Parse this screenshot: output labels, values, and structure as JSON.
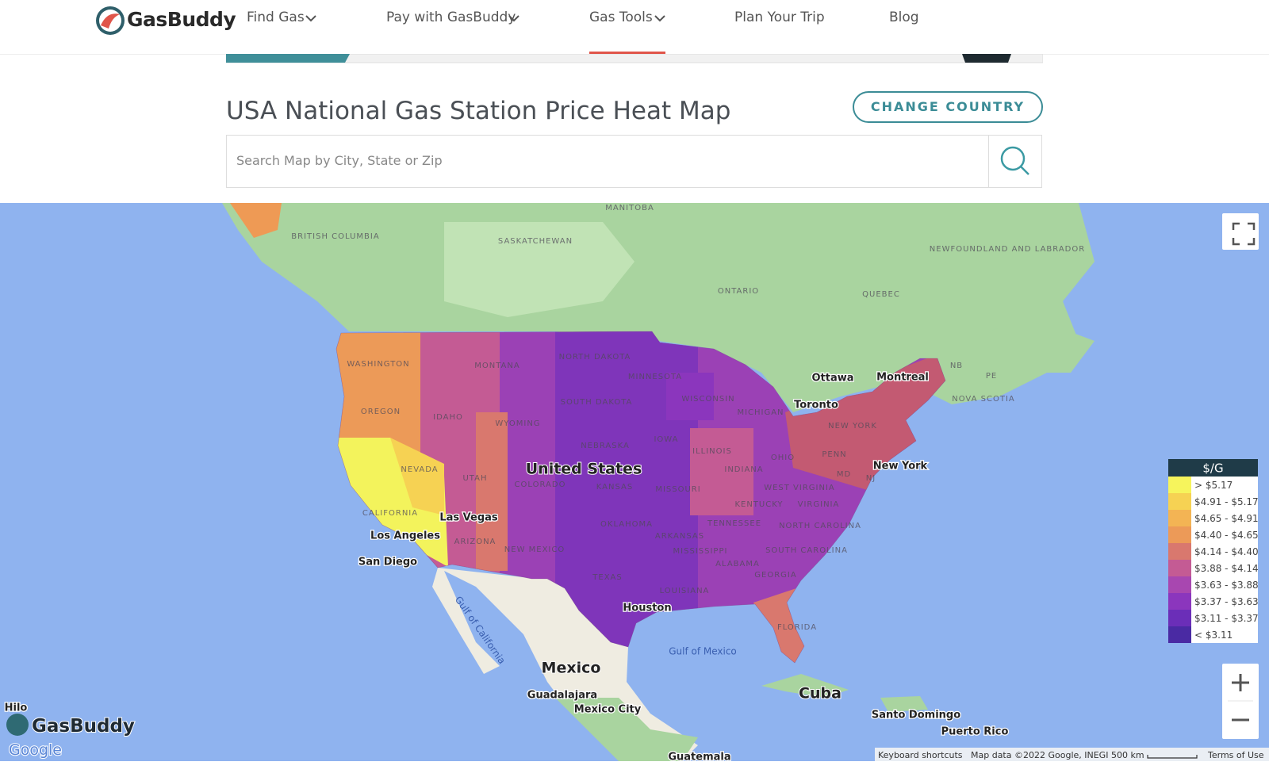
{
  "header": {
    "logo": "GasBuddy",
    "nav": [
      "Find Gas",
      "Pay with GasBuddy",
      "Gas Tools",
      "Plan Your Trip",
      "Blog"
    ]
  },
  "page": {
    "title": "USA National Gas Station Price Heat Map",
    "change_country": "CHANGE COUNTRY",
    "search_placeholder": "Search Map by City, State or Zip"
  },
  "map": {
    "labels": [
      "MANITOBA",
      "BRITISH COLUMBIA",
      "SASKATCHEWAN",
      "ONTARIO",
      "QUEBEC",
      "NEWFOUNDLAND AND LABRADOR",
      "NB",
      "PE",
      "NOVA SCOTIA",
      "Ottawa",
      "Montreal",
      "Toronto",
      "WASHINGTON",
      "MONTANA",
      "NORTH DAKOTA",
      "MINNESOTA",
      "WISCONSIN",
      "MICHIGAN",
      "SOUTH DAKOTA",
      "OREGON",
      "IDAHO",
      "WYOMING",
      "NEW YORK",
      "PENN",
      "IOWA",
      "NEBRASKA",
      "ILLINOIS",
      "INDIANA",
      "OHIO",
      "NEVADA",
      "United States",
      "UTAH",
      "COLORADO",
      "KANSAS",
      "MISSOURI",
      "WEST VIRGINIA",
      "VIRGINIA",
      "KENTUCKY",
      "New York",
      "NJ",
      "MD",
      "CALIFORNIA",
      "Las Vegas",
      "TENNESSEE",
      "NORTH CAROLINA",
      "OKLAHOMA",
      "ARKANSAS",
      "Los Angeles",
      "ARIZONA",
      "NEW MEXICO",
      "SOUTH CAROLINA",
      "MISSISSIPPI",
      "ALABAMA",
      "GEORGIA",
      "San Diego",
      "TEXAS",
      "LOUISIANA",
      "Houston",
      "FLORIDA",
      "Gulf of California",
      "Gulf of Mexico",
      "Mexico",
      "Cuba",
      "Guadalajara",
      "Mexico City",
      "Santo Domingo",
      "Puerto Rico",
      "Guatemala",
      "Hilo"
    ],
    "legend": {
      "title": "$/G",
      "items": [
        {
          "label": "> $5.17",
          "color": "#f6f45c"
        },
        {
          "label": "$4.91 - $5.17",
          "color": "#f6d253"
        },
        {
          "label": "$4.65 - $4.91",
          "color": "#f3b454"
        },
        {
          "label": "$4.40 - $4.65",
          "color": "#ec9a58"
        },
        {
          "label": "$4.14 - $4.40",
          "color": "#d9786e"
        },
        {
          "label": "$3.88 - $4.14",
          "color": "#c45b94"
        },
        {
          "label": "$3.63 - $3.88",
          "color": "#a847b0"
        },
        {
          "label": "$3.37 - $3.63",
          "color": "#8b36bd"
        },
        {
          "label": "$3.11 - $3.37",
          "color": "#6b2eb8"
        },
        {
          "label": "< $3.11",
          "color": "#4a2aa3"
        }
      ]
    },
    "watermark": "GasBuddy",
    "provider": "Google",
    "attribution": [
      "Keyboard shortcuts",
      "Map data ©2022 Google, INEGI",
      "500 km",
      "Terms of Use"
    ]
  }
}
